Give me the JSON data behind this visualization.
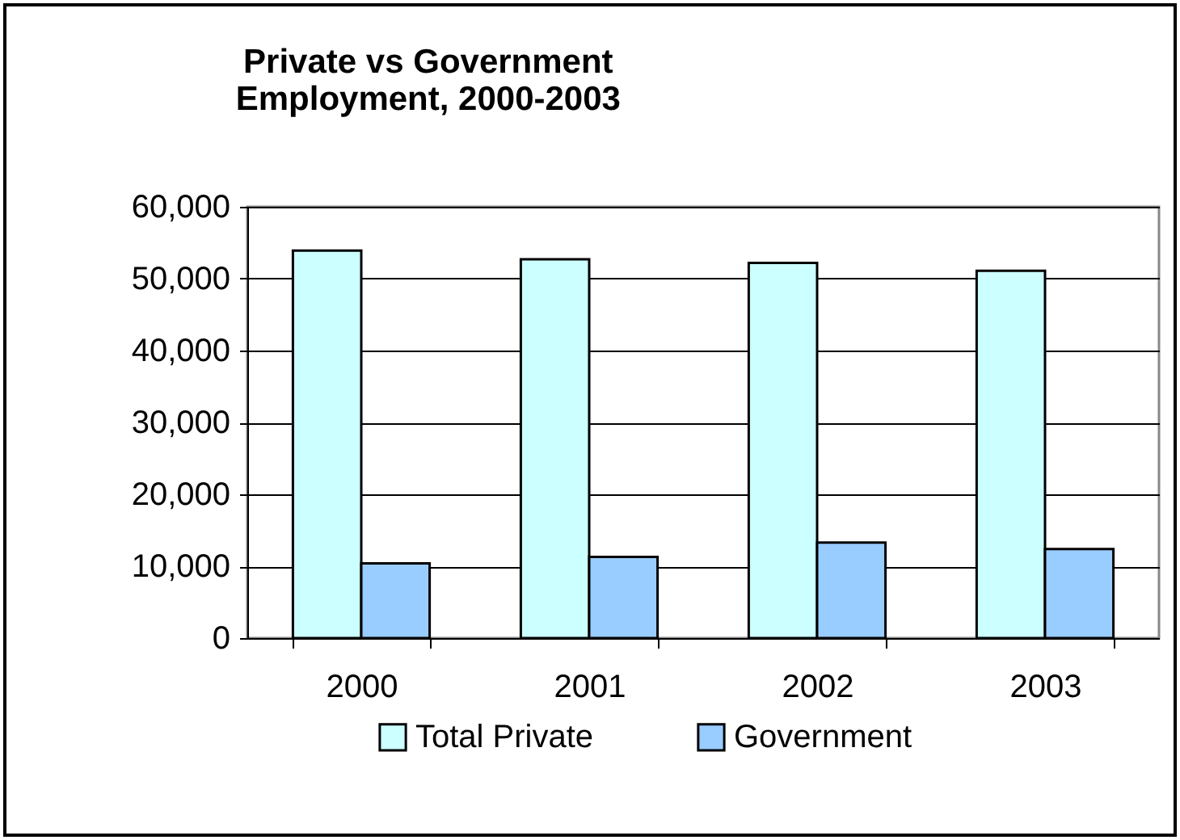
{
  "chart_data": {
    "type": "bar",
    "title": "Private vs Government\nEmployment, 2000-2003",
    "categories": [
      "2000",
      "2001",
      "2002",
      "2003"
    ],
    "series": [
      {
        "name": "Total Private",
        "color": "#ccffff",
        "values": [
          53900,
          52700,
          52200,
          51100
        ]
      },
      {
        "name": "Government",
        "color": "#99ccff",
        "values": [
          10400,
          11300,
          13300,
          12400
        ]
      }
    ],
    "ylim": [
      0,
      60000
    ],
    "yticks": [
      0,
      {
        "value": 10000,
        "label": "10,000"
      },
      {
        "value": 20000,
        "label": "20,000"
      },
      {
        "value": 30000,
        "label": "30,000"
      },
      {
        "value": 40000,
        "label": "40,000"
      },
      {
        "value": 50000,
        "label": "50,000"
      },
      {
        "value": 60000,
        "label": "60,000"
      }
    ],
    "grid": "y",
    "legend": "bottom"
  }
}
